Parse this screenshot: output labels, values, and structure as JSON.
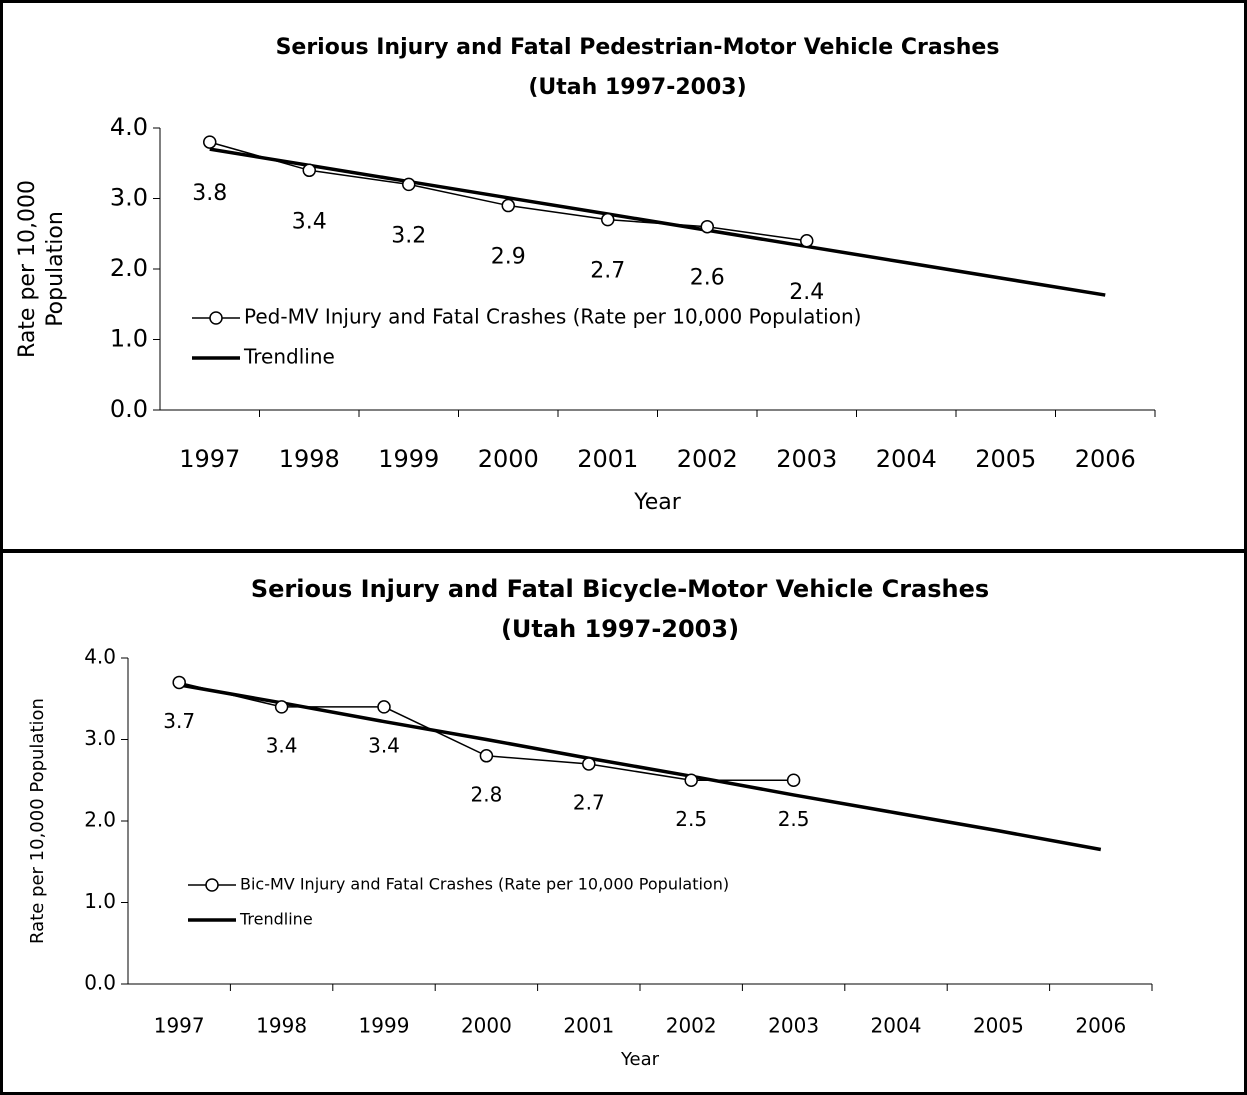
{
  "chart_data": [
    {
      "type": "line",
      "title": "Serious Injury and Fatal Pedestrian-Motor Vehicle Crashes",
      "subtitle": "(Utah 1997-2003)",
      "x_label": "Year",
      "y_label": [
        "Rate per 10,000",
        "Population"
      ],
      "categories": [
        "1997",
        "1998",
        "1999",
        "2000",
        "2001",
        "2002",
        "2003",
        "2004",
        "2005",
        "2006"
      ],
      "series": [
        {
          "name": "Ped-MV Injury and Fatal Crashes (Rate per 10,000 Population)",
          "color": "#000000",
          "marker": "circle",
          "data_labels": true,
          "values": [
            3.8,
            3.4,
            3.2,
            2.9,
            2.7,
            2.6,
            2.4,
            null,
            null,
            null
          ]
        },
        {
          "name": "Trendline",
          "color": "#000000",
          "marker": "none",
          "data_labels": false,
          "values": [
            3.7,
            3.47,
            3.24,
            3.01,
            2.78,
            2.55,
            2.32,
            2.09,
            1.86,
            1.63
          ]
        }
      ],
      "ylim": [
        0,
        4
      ],
      "yticks": [
        {
          "value": 0,
          "label": "0.0"
        },
        {
          "value": 1,
          "label": "1.0"
        },
        {
          "value": 2,
          "label": "2.0"
        },
        {
          "value": 3,
          "label": "3.0"
        },
        {
          "value": 4,
          "label": "4.0"
        }
      ],
      "grid": false,
      "legend": "left"
    },
    {
      "type": "line",
      "title": "Serious Injury and Fatal Bicycle-Motor Vehicle Crashes",
      "subtitle": "(Utah 1997-2003)",
      "x_label": "Year",
      "y_label": [
        "Rate per 10,000 Population"
      ],
      "categories": [
        "1997",
        "1998",
        "1999",
        "2000",
        "2001",
        "2002",
        "2003",
        "2004",
        "2005",
        "2006"
      ],
      "series": [
        {
          "name": "Bic-MV Injury and Fatal Crashes (Rate per 10,000 Population)",
          "color": "#000000",
          "marker": "circle",
          "data_labels": true,
          "values": [
            3.7,
            3.4,
            3.4,
            2.8,
            2.7,
            2.5,
            2.5,
            null,
            null,
            null
          ]
        },
        {
          "name": "Trendline",
          "color": "#000000",
          "marker": "none",
          "data_labels": false,
          "values": [
            3.67,
            3.45,
            3.22,
            3.0,
            2.77,
            2.55,
            2.32,
            2.1,
            1.88,
            1.65
          ]
        }
      ],
      "ylim": [
        0,
        4
      ],
      "yticks": [
        {
          "value": 0,
          "label": "0.0"
        },
        {
          "value": 1,
          "label": "1.0"
        },
        {
          "value": 2,
          "label": "2.0"
        },
        {
          "value": 3,
          "label": "3.0"
        },
        {
          "value": 4,
          "label": "4.0"
        }
      ],
      "grid": false,
      "legend": "left"
    }
  ]
}
